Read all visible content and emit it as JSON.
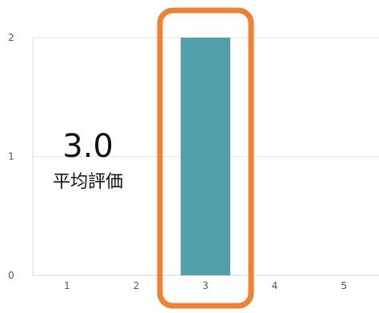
{
  "summary": {
    "average_value": "3.0",
    "average_label": "平均評価"
  },
  "colors": {
    "bar": "#52A0AA",
    "highlight": "#EE8136",
    "grid": "#E6E6E6",
    "axis": "#D9D9D9",
    "tick_text": "#555555"
  },
  "chart_data": {
    "type": "bar",
    "categories": [
      "1",
      "2",
      "3",
      "4",
      "5"
    ],
    "values": [
      0,
      0,
      2,
      0,
      0
    ],
    "ylim": [
      0,
      2
    ],
    "yticks": [
      "0",
      "1",
      "2"
    ],
    "grid": true,
    "highlighted_category": "3"
  }
}
